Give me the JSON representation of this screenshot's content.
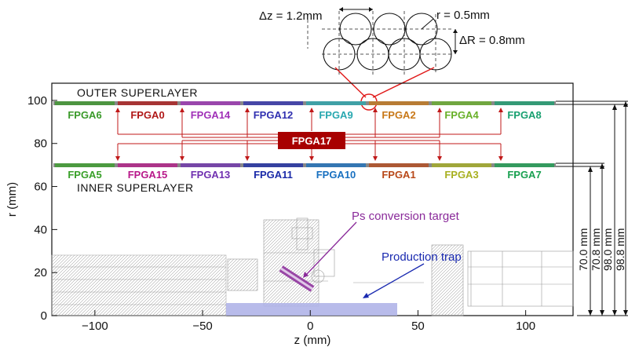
{
  "labels": {
    "outer_superlayer": "OUTER SUPERLAYER",
    "inner_superlayer": "INNER SUPERLAYER",
    "central_fpga": "FPGA17",
    "ps_target": "Ps conversion target",
    "production_trap": "Production trap",
    "delta_z": "Δz = 1.2mm",
    "radius": "r = 0.5mm",
    "delta_r": "ΔR = 0.8mm"
  },
  "axes": {
    "x_title": "z (mm)",
    "y_title": "r (mm)",
    "x_ticks": [
      "−100",
      "−50",
      "0",
      "50",
      "100"
    ],
    "x_tick_values": [
      -100,
      -50,
      0,
      50,
      100
    ],
    "y_ticks": [
      "0",
      "20",
      "40",
      "60",
      "80",
      "100"
    ],
    "y_tick_values": [
      0,
      20,
      40,
      60,
      80,
      100
    ]
  },
  "outer_fpgas": [
    {
      "name": "FPGA6",
      "color": "#3a9a2a"
    },
    {
      "name": "FPGA0",
      "color": "#b01818"
    },
    {
      "name": "FPGA14",
      "color": "#a030b8"
    },
    {
      "name": "FPGA12",
      "color": "#3030b0"
    },
    {
      "name": "FPGA9",
      "color": "#28a8b0"
    },
    {
      "name": "FPGA2",
      "color": "#c87818"
    },
    {
      "name": "FPGA4",
      "color": "#68b028"
    },
    {
      "name": "FPGA8",
      "color": "#18a070"
    }
  ],
  "inner_fpgas": [
    {
      "name": "FPGA5",
      "color": "#38a028"
    },
    {
      "name": "FPGA15",
      "color": "#b8188a"
    },
    {
      "name": "FPGA13",
      "color": "#7030b0"
    },
    {
      "name": "FPGA11",
      "color": "#1a2aa8"
    },
    {
      "name": "FPGA10",
      "color": "#1870c0"
    },
    {
      "name": "FPGA1",
      "color": "#b84818"
    },
    {
      "name": "FPGA3",
      "color": "#a8b020"
    },
    {
      "name": "FPGA7",
      "color": "#18a050"
    }
  ],
  "dimensions": [
    "70.0 mm",
    "70.8 mm",
    "98.0 mm",
    "98.8 mm"
  ],
  "colors": {
    "fpga17": "#a80000",
    "wiring": "#c01818",
    "trap": "#b0b4e8",
    "target": "#8a2a9a",
    "trap_arrow": "#1a2ab0"
  }
}
